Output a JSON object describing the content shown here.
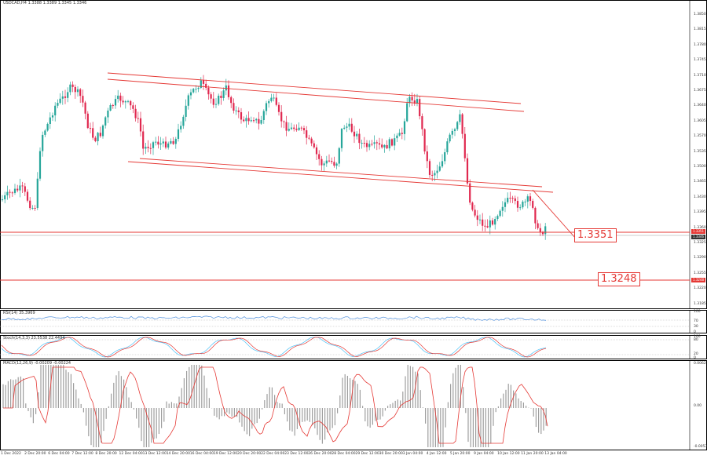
{
  "main": {
    "title": "USDCAD,H4  1.3388 1.3389 1.3345 1.3346",
    "price_axis": [
      "1.3850",
      "1.3815",
      "1.3780",
      "1.3745",
      "1.3710",
      "1.3675",
      "1.3640",
      "1.3605",
      "1.3570",
      "1.3535",
      "1.3500",
      "1.3465",
      "1.3430",
      "1.3395",
      "1.3360",
      "1.3325",
      "1.3290",
      "1.3255",
      "1.3220",
      "1.3185"
    ],
    "price_tags": {
      "current": "1.3351",
      "bid": "1.3346",
      "lower": "1.3248"
    },
    "level_upper": "1.3351",
    "level_lower": "1.3248",
    "colors": {
      "bull": "#26a69a",
      "bear": "#e0284f",
      "line": "#e53935"
    }
  },
  "rsi": {
    "label": "RSI(14) 35.3969",
    "levels": [
      "100",
      "70",
      "30",
      "0"
    ]
  },
  "stoch": {
    "label": "Stoch(14,3,3) 23.5538 22.4494",
    "levels": [
      "100",
      "80",
      "20",
      "0"
    ]
  },
  "macd": {
    "label": "MACD(12,26,9) -0.00209 -0.00224",
    "levels": [
      "0.0062",
      "0.00",
      "-0.0053"
    ]
  },
  "time_axis": [
    "1 Dec 2022",
    "2 Dec 20:00",
    "6 Dec 04:00",
    "7 Dec 12:00",
    "8 Dec 20:00",
    "12 Dec 04:00",
    "13 Dec 12:00",
    "14 Dec 20:00",
    "16 Dec 04:00",
    "19 Dec 12:00",
    "20 Dec 20:00",
    "22 Dec 04:00",
    "23 Dec 12:00",
    "26 Dec 20:00",
    "28 Dec 04:00",
    "29 Dec 12:00",
    "30 Dec 20:00",
    "3 Jan 04:00",
    "4 Jan 12:00",
    "5 Jan 20:00",
    "9 Jan 04:00",
    "10 Jan 12:00",
    "11 Jan 20:00",
    "13 Jan 04:00"
  ]
}
